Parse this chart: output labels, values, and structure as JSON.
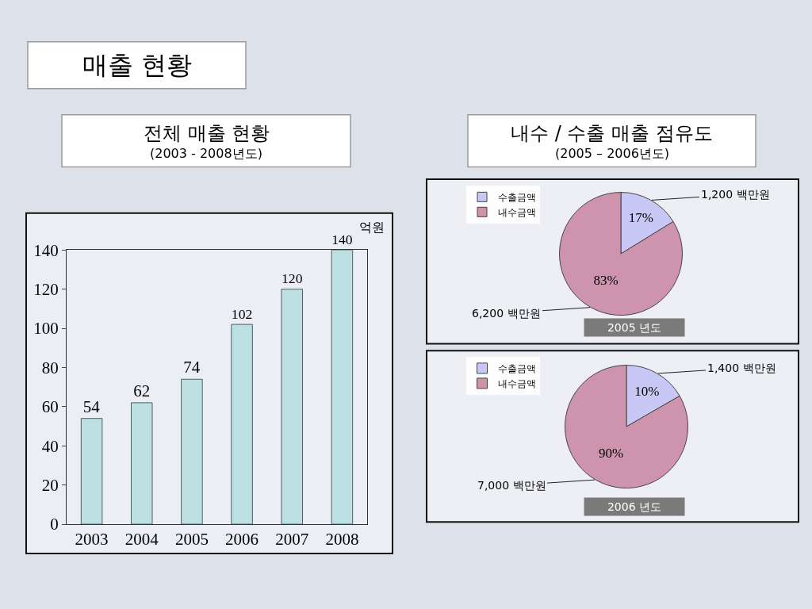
{
  "chart_data": [
    {
      "type": "other",
      "title": "매출 현황"
    },
    {
      "type": "bar",
      "title": "전체 매출 현황",
      "subtitle": "(2003 - 2008년도)",
      "ylabel": "억원",
      "categories": [
        "2003",
        "2004",
        "2005",
        "2006",
        "2007",
        "2008"
      ],
      "values": [
        54,
        62,
        74,
        102,
        120,
        140
      ],
      "color": "#bde0e3",
      "ylim": [
        0,
        140
      ],
      "yticks": [
        0,
        20,
        40,
        60,
        80,
        100,
        120,
        140
      ],
      "data_labels": true
    },
    {
      "type": "other",
      "title": "내수 / 수출 매출 점유도",
      "subtitle": "(2005 – 2006년도)"
    },
    {
      "type": "pie",
      "title": "2005 년도",
      "categories": [
        "수출금액",
        "내수금액"
      ],
      "values": [
        1200,
        6200
      ],
      "colors": [
        "#c8c8f6",
        "#cf94ad"
      ],
      "value_labels": [
        "1,200 백만원",
        "6,200 백만원"
      ],
      "annotations": [
        "17%",
        "83%"
      ],
      "legend": "top left"
    },
    {
      "type": "pie",
      "title": "2006 년도",
      "categories": [
        "수출금액",
        "내수금액"
      ],
      "values": [
        1400,
        7000
      ],
      "colors": [
        "#c8c8f6",
        "#cf94ad"
      ],
      "value_labels": [
        "1,400 백만원",
        "7,000 백만원"
      ],
      "annotations": [
        "10%",
        "90%"
      ],
      "legend": "top left"
    }
  ]
}
